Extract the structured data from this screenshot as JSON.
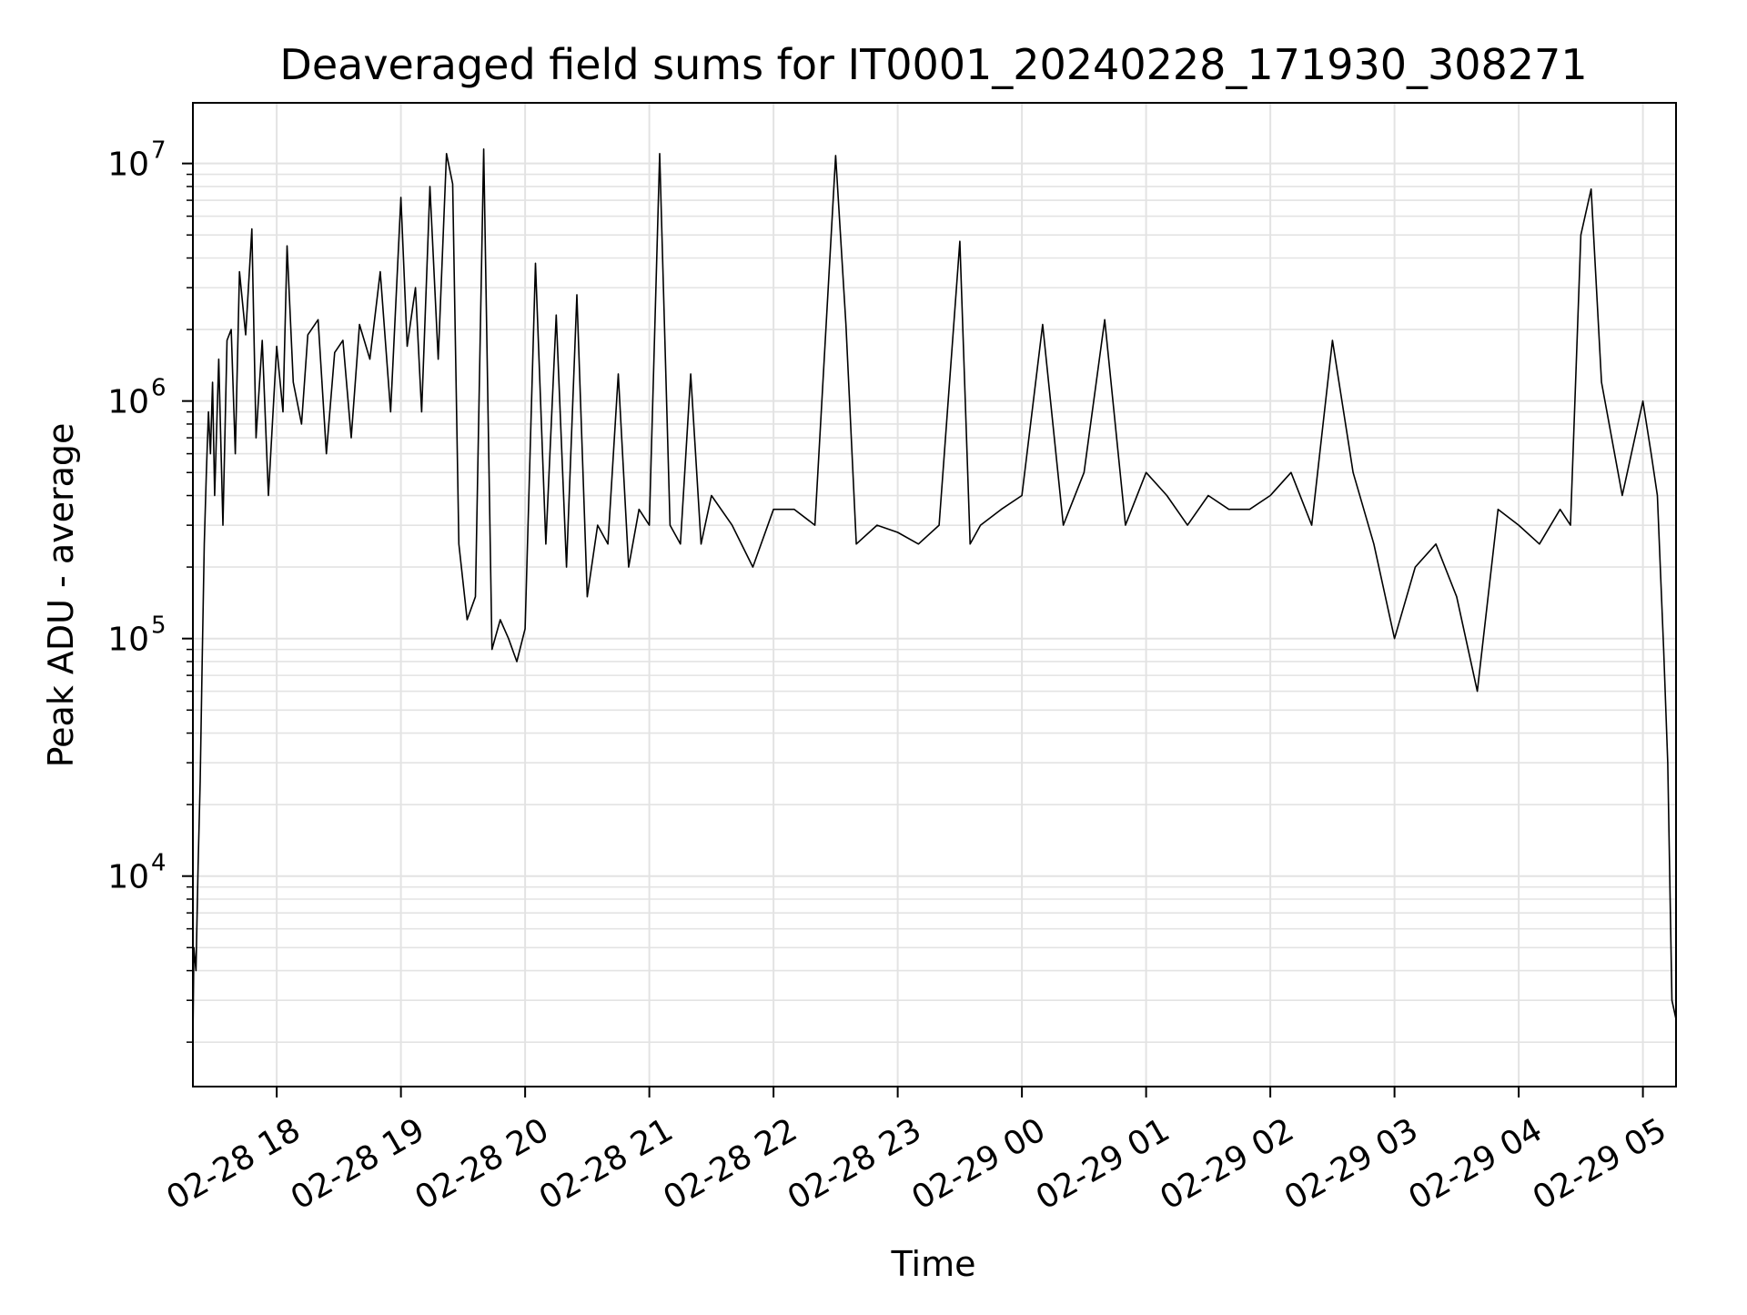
{
  "chart_data": {
    "type": "line",
    "title": "Deaveraged field sums for IT0001_20240228_171930_308271",
    "xlabel": "Time",
    "ylabel": "Peak ADU - average",
    "yscale": "log",
    "ylim": [
      1300,
      18000000
    ],
    "xlim": [
      "2024-02-28 17:19:30",
      "2024-02-29 05:16:00"
    ],
    "grid": true,
    "grid_color": "#e3e3e3",
    "line_color": "#000000",
    "x_ticks": [
      {
        "t": "2024-02-28 18:00",
        "label": "02-28 18"
      },
      {
        "t": "2024-02-28 19:00",
        "label": "02-28 19"
      },
      {
        "t": "2024-02-28 20:00",
        "label": "02-28 20"
      },
      {
        "t": "2024-02-28 21:00",
        "label": "02-28 21"
      },
      {
        "t": "2024-02-28 22:00",
        "label": "02-28 22"
      },
      {
        "t": "2024-02-28 23:00",
        "label": "02-28 23"
      },
      {
        "t": "2024-02-29 00:00",
        "label": "02-29 00"
      },
      {
        "t": "2024-02-29 01:00",
        "label": "02-29 01"
      },
      {
        "t": "2024-02-29 02:00",
        "label": "02-29 02"
      },
      {
        "t": "2024-02-29 03:00",
        "label": "02-29 03"
      },
      {
        "t": "2024-02-29 04:00",
        "label": "02-29 04"
      },
      {
        "t": "2024-02-29 05:00",
        "label": "02-29 05"
      }
    ],
    "y_ticks": [
      {
        "value": 10000,
        "base": "10",
        "exp": "4"
      },
      {
        "value": 100000,
        "base": "10",
        "exp": "5"
      },
      {
        "value": 1000000,
        "base": "10",
        "exp": "6"
      },
      {
        "value": 10000000,
        "base": "10",
        "exp": "7"
      }
    ],
    "series": [
      {
        "x": [
          "2024-02-28 17:19:30",
          "2024-02-28 17:20",
          "2024-02-28 17:21",
          "2024-02-28 17:22",
          "2024-02-28 17:23",
          "2024-02-28 17:24",
          "2024-02-28 17:25",
          "2024-02-28 17:26",
          "2024-02-28 17:27",
          "2024-02-28 17:28",
          "2024-02-28 17:29",
          "2024-02-28 17:30",
          "2024-02-28 17:32",
          "2024-02-28 17:34",
          "2024-02-28 17:36",
          "2024-02-28 17:38",
          "2024-02-28 17:40",
          "2024-02-28 17:42",
          "2024-02-28 17:45",
          "2024-02-28 17:48",
          "2024-02-28 17:50",
          "2024-02-28 17:53",
          "2024-02-28 17:56",
          "2024-02-28 18:00",
          "2024-02-28 18:03",
          "2024-02-28 18:05",
          "2024-02-28 18:08",
          "2024-02-28 18:12",
          "2024-02-28 18:15",
          "2024-02-28 18:20",
          "2024-02-28 18:24",
          "2024-02-28 18:28",
          "2024-02-28 18:32",
          "2024-02-28 18:36",
          "2024-02-28 18:40",
          "2024-02-28 18:45",
          "2024-02-28 18:50",
          "2024-02-28 18:55",
          "2024-02-28 19:00",
          "2024-02-28 19:03",
          "2024-02-28 19:07",
          "2024-02-28 19:10",
          "2024-02-28 19:14",
          "2024-02-28 19:18",
          "2024-02-28 19:22",
          "2024-02-28 19:25",
          "2024-02-28 19:28",
          "2024-02-28 19:32",
          "2024-02-28 19:36",
          "2024-02-28 19:40",
          "2024-02-28 19:44",
          "2024-02-28 19:48",
          "2024-02-28 19:52",
          "2024-02-28 19:56",
          "2024-02-28 20:00",
          "2024-02-28 20:05",
          "2024-02-28 20:10",
          "2024-02-28 20:15",
          "2024-02-28 20:20",
          "2024-02-28 20:25",
          "2024-02-28 20:30",
          "2024-02-28 20:35",
          "2024-02-28 20:40",
          "2024-02-28 20:45",
          "2024-02-28 20:50",
          "2024-02-28 20:55",
          "2024-02-28 21:00",
          "2024-02-28 21:05",
          "2024-02-28 21:10",
          "2024-02-28 21:15",
          "2024-02-28 21:20",
          "2024-02-28 21:25",
          "2024-02-28 21:30",
          "2024-02-28 21:40",
          "2024-02-28 21:50",
          "2024-02-28 22:00",
          "2024-02-28 22:10",
          "2024-02-28 22:20",
          "2024-02-28 22:30",
          "2024-02-28 22:35",
          "2024-02-28 22:40",
          "2024-02-28 22:50",
          "2024-02-28 23:00",
          "2024-02-28 23:10",
          "2024-02-28 23:20",
          "2024-02-28 23:30",
          "2024-02-28 23:35",
          "2024-02-28 23:40",
          "2024-02-28 23:50",
          "2024-02-29 00:00",
          "2024-02-29 00:10",
          "2024-02-29 00:20",
          "2024-02-29 00:30",
          "2024-02-29 00:40",
          "2024-02-29 00:50",
          "2024-02-29 01:00",
          "2024-02-29 01:10",
          "2024-02-29 01:20",
          "2024-02-29 01:30",
          "2024-02-29 01:40",
          "2024-02-29 01:50",
          "2024-02-29 02:00",
          "2024-02-29 02:10",
          "2024-02-29 02:20",
          "2024-02-29 02:30",
          "2024-02-29 02:40",
          "2024-02-29 02:50",
          "2024-02-29 03:00",
          "2024-02-29 03:10",
          "2024-02-29 03:20",
          "2024-02-29 03:30",
          "2024-02-29 03:40",
          "2024-02-29 03:50",
          "2024-02-29 04:00",
          "2024-02-29 04:10",
          "2024-02-29 04:20",
          "2024-02-29 04:25",
          "2024-02-29 04:30",
          "2024-02-29 04:35",
          "2024-02-29 04:40",
          "2024-02-29 04:50",
          "2024-02-29 05:00",
          "2024-02-29 05:04",
          "2024-02-29 05:07",
          "2024-02-29 05:10",
          "2024-02-29 05:12",
          "2024-02-29 05:14",
          "2024-02-29 05:16"
        ],
        "y": [
          2000,
          5000,
          4000,
          11000,
          25000,
          80000,
          250000,
          500000,
          900000,
          600000,
          1200000,
          400000,
          1500000,
          300000,
          1800000,
          2000000,
          600000,
          3500000,
          1900000,
          5300000,
          700000,
          1800000,
          400000,
          1700000,
          900000,
          4500000,
          1200000,
          800000,
          1900000,
          2200000,
          600000,
          1600000,
          1800000,
          700000,
          2100000,
          1500000,
          3500000,
          900000,
          7200000,
          1700000,
          3000000,
          900000,
          8000000,
          1500000,
          11000000,
          8200000,
          250000,
          120000,
          150000,
          11500000,
          90000,
          120000,
          100000,
          80000,
          110000,
          3800000,
          250000,
          2300000,
          200000,
          2800000,
          150000,
          300000,
          250000,
          1300000,
          200000,
          350000,
          300000,
          11000000,
          300000,
          250000,
          1300000,
          250000,
          400000,
          300000,
          200000,
          350000,
          350000,
          300000,
          10800000,
          2100000,
          250000,
          300000,
          280000,
          250000,
          300000,
          4700000,
          250000,
          300000,
          350000,
          400000,
          2100000,
          300000,
          500000,
          2200000,
          300000,
          500000,
          400000,
          300000,
          400000,
          350000,
          350000,
          400000,
          500000,
          300000,
          1800000,
          500000,
          250000,
          100000,
          200000,
          250000,
          150000,
          60000,
          350000,
          300000,
          250000,
          350000,
          300000,
          5000000,
          7800000,
          1200000,
          400000,
          1000000,
          600000,
          400000,
          90000,
          30000,
          3000,
          2500
        ]
      }
    ]
  }
}
